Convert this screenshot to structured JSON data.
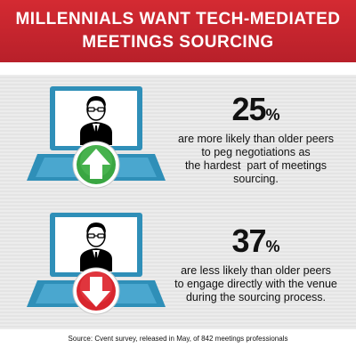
{
  "header": {
    "line1": "MILLENNIALS WANT TECH-MEDIATED",
    "line2": "MEETINGS SOURCING"
  },
  "stats": [
    {
      "value": "25",
      "symbol": "%",
      "lines": [
        "are more likely than older peers",
        "to peg negotiations as",
        "the hardest  part of meetings",
        "sourcing."
      ],
      "direction": "up",
      "arrow_color": "#3aa642"
    },
    {
      "value": "37",
      "symbol": "%",
      "lines": [
        "are less likely than older peers",
        "to engage directly with the venue",
        "during the sourcing process."
      ],
      "direction": "down",
      "arrow_color": "#d8262e"
    }
  ],
  "source": "Source: Cvent survey, released in May, of 842 meetings professionals",
  "colors": {
    "header_red": "#c4252e",
    "laptop_blue": "#2f8fb8"
  }
}
